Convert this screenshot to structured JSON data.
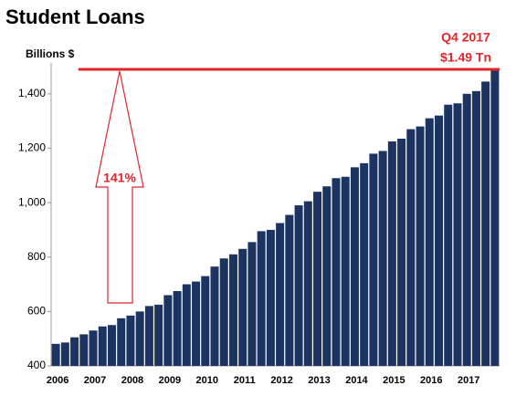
{
  "chart_data": {
    "type": "bar",
    "title": "Student Loans",
    "y_axis_label": "Billions $",
    "annotations": [
      "Q4 2017",
      "$1.49 Tn",
      "141%"
    ],
    "reference_value": 1490,
    "reference_color": "#e0252b",
    "categories": [
      "2006",
      null,
      null,
      null,
      "2007",
      null,
      null,
      null,
      "2008",
      null,
      null,
      null,
      "2009",
      null,
      null,
      null,
      "2010",
      null,
      null,
      null,
      "2011",
      null,
      null,
      null,
      "2012",
      null,
      null,
      null,
      "2013",
      null,
      null,
      null,
      "2014",
      null,
      null,
      null,
      "2015",
      null,
      null,
      null,
      "2016",
      null,
      null,
      null,
      "2017",
      null,
      null,
      null
    ],
    "values": [
      481,
      486,
      505,
      516,
      530,
      545,
      550,
      575,
      585,
      600,
      620,
      625,
      660,
      675,
      700,
      710,
      730,
      765,
      795,
      810,
      830,
      855,
      895,
      900,
      925,
      955,
      990,
      1005,
      1040,
      1060,
      1090,
      1095,
      1130,
      1145,
      1180,
      1190,
      1225,
      1235,
      1270,
      1280,
      1310,
      1320,
      1360,
      1365,
      1400,
      1410,
      1445,
      1490
    ],
    "color": "#1b3461",
    "ylim": [
      400,
      1500
    ],
    "yticks": [
      400,
      600,
      800,
      {
        "value": 1000,
        "label": "1,000"
      },
      {
        "value": 1200,
        "label": "1,200"
      },
      {
        "value": 1400,
        "label": "1,400"
      }
    ],
    "grid": false
  }
}
